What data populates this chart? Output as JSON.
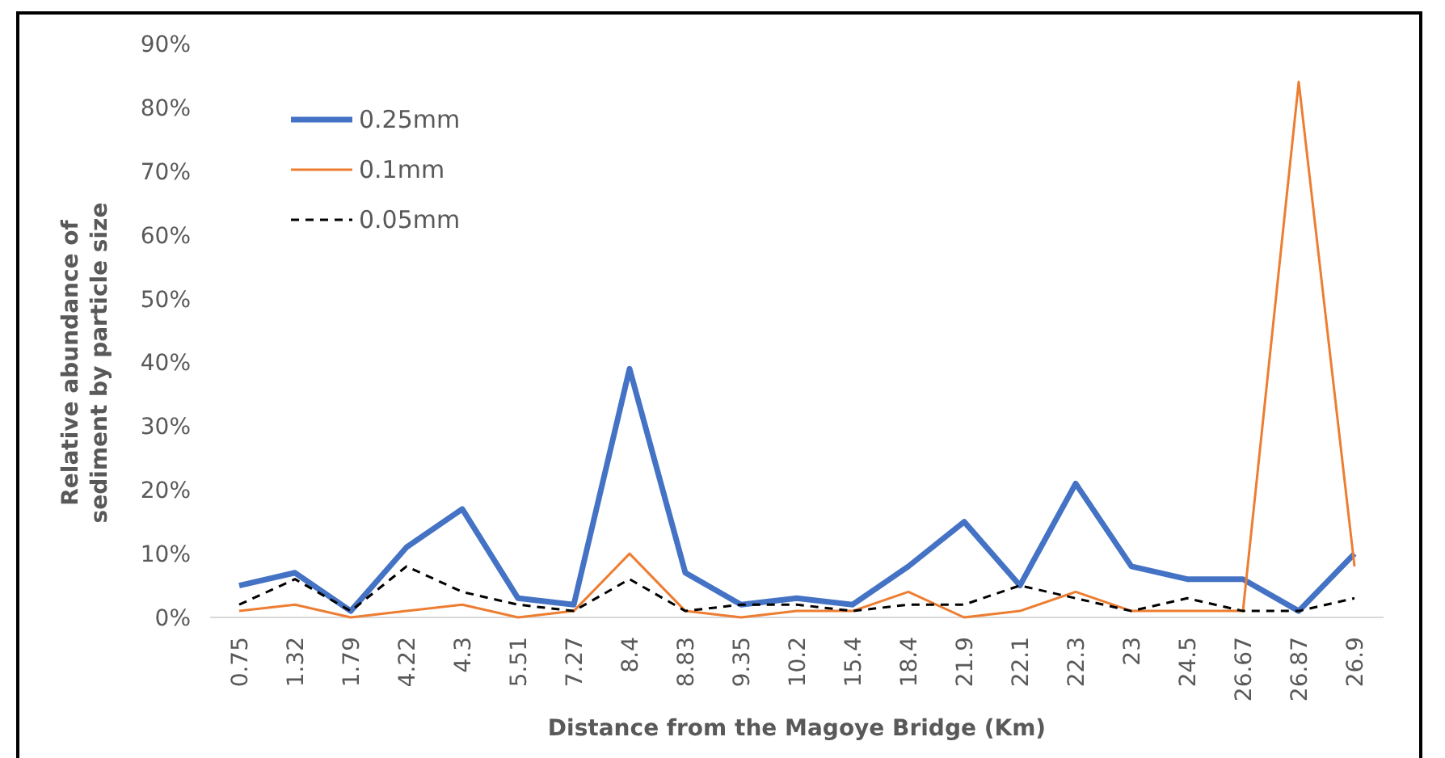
{
  "chart_data": {
    "type": "line",
    "xlabel": "Distance  from the Magoye Bridge (Km)",
    "ylabel": "Relative  abundance of sediment by particle size",
    "categories": [
      "0.75",
      "1.32",
      "1.79",
      "4.22",
      "4.3",
      "5.51",
      "7.27",
      "8.4",
      "8.83",
      "9.35",
      "10.2",
      "15.4",
      "18.4",
      "21.9",
      "22.1",
      "22.3",
      "23",
      "24.5",
      "26.67",
      "26.87",
      "26.9"
    ],
    "series": [
      {
        "name": "0.25mm",
        "color": "#4472c4",
        "line_style": "solid",
        "values": [
          5,
          7,
          1,
          11,
          17,
          3,
          2,
          39,
          7,
          2,
          3,
          2,
          8,
          15,
          5,
          21,
          8,
          6,
          6,
          1,
          10
        ]
      },
      {
        "name": "0.1mm",
        "color": "#ed7d31",
        "line_style": "solid",
        "values": [
          1,
          2,
          0,
          1,
          2,
          0,
          1,
          10,
          1,
          0,
          1,
          1,
          4,
          0,
          1,
          4,
          1,
          1,
          1,
          84,
          8
        ]
      },
      {
        "name": "0.05mm",
        "color": "#000000",
        "line_style": "dashed",
        "values": [
          2,
          6,
          1,
          8,
          4,
          2,
          1,
          6,
          1,
          2,
          2,
          1,
          2,
          2,
          5,
          3,
          1,
          3,
          1,
          1,
          3
        ]
      }
    ],
    "ylim": [
      0,
      90
    ],
    "yticks": [
      {
        "value": 0,
        "label": "0%"
      },
      {
        "value": 10,
        "label": "10%"
      },
      {
        "value": 20,
        "label": "20%"
      },
      {
        "value": 30,
        "label": "30%"
      },
      {
        "value": 40,
        "label": "40%"
      },
      {
        "value": 50,
        "label": "50%"
      },
      {
        "value": 60,
        "label": "60%"
      },
      {
        "value": 70,
        "label": "70%"
      },
      {
        "value": 80,
        "label": "80%"
      },
      {
        "value": 90,
        "label": "90%"
      }
    ],
    "grid": false,
    "legend": "top left",
    "marker": "none"
  }
}
